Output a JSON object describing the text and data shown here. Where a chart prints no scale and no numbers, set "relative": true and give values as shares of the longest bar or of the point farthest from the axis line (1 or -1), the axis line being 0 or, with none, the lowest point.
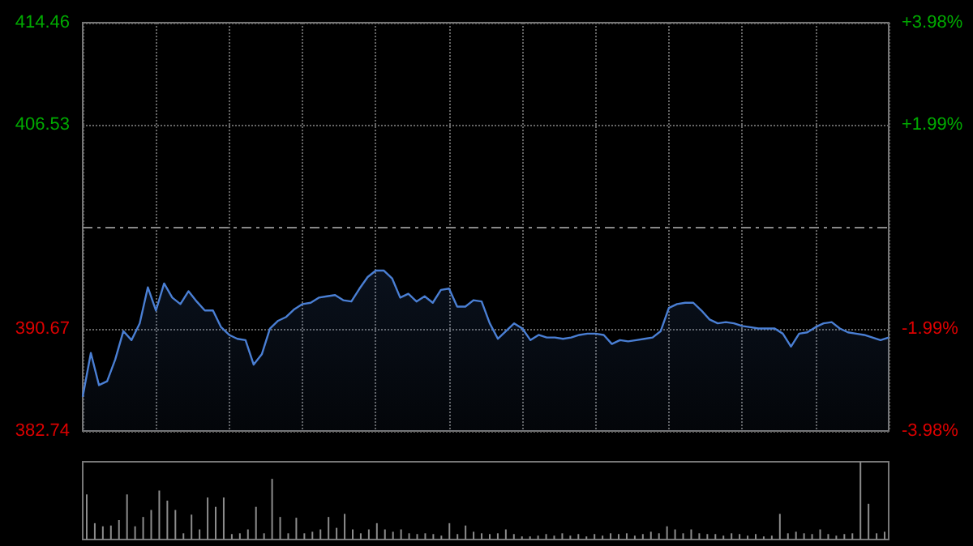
{
  "chart_data": [
    {
      "type": "area",
      "categories": [
        null,
        null,
        null,
        null,
        null,
        null,
        null,
        null,
        null,
        null,
        null,
        null,
        null,
        null,
        null,
        null,
        null,
        null,
        null,
        null,
        null,
        null,
        null,
        null,
        null,
        null,
        null,
        null,
        null,
        null,
        null,
        null,
        null,
        null,
        null,
        null,
        null,
        null,
        null,
        null,
        null,
        null,
        null,
        null,
        null,
        null,
        null,
        null,
        null,
        null,
        null,
        null,
        null,
        null,
        null,
        null,
        null,
        null,
        null,
        null,
        null,
        null,
        null,
        null,
        null,
        null,
        null,
        null,
        null,
        null,
        null,
        null,
        null,
        null,
        null,
        null,
        null,
        null,
        null,
        null,
        null,
        null,
        null,
        null,
        null,
        null,
        null,
        null,
        null,
        null,
        null,
        null,
        null,
        null,
        null,
        null,
        null,
        null,
        null,
        null
      ],
      "series": [
        {
          "color": "#4a7fd4",
          "values": [
            385.4,
            388.8,
            386.3,
            386.6,
            388.3,
            390.5,
            389.8,
            391.1,
            393.9,
            392.1,
            394.2,
            393.1,
            392.6,
            393.6,
            392.8,
            392.1,
            392.1,
            390.8,
            390.2,
            389.9,
            389.8,
            387.9,
            388.7,
            390.7,
            391.3,
            391.6,
            392.2,
            392.6,
            392.7,
            393.1,
            393.2,
            393.3,
            392.9,
            392.8,
            393.8,
            394.7,
            395.2,
            395.2,
            394.6,
            393.1,
            393.4,
            392.8,
            393.2,
            392.7,
            393.7,
            393.8,
            392.4,
            392.4,
            392.9,
            392.8,
            391.1,
            389.9,
            390.5,
            391.1,
            390.7,
            389.8,
            390.2,
            390.0,
            390.0,
            389.9,
            390.0,
            390.2,
            390.3,
            390.3,
            390.2,
            389.5,
            389.8,
            389.7,
            389.8,
            389.9,
            390.0,
            390.5,
            392.3,
            392.6,
            392.7,
            392.7,
            392.1,
            391.4,
            391.1,
            391.2,
            391.1,
            390.9,
            390.8,
            390.7,
            390.7,
            390.7,
            390.3,
            389.3,
            390.3,
            390.4,
            390.8,
            391.1,
            391.2,
            390.7,
            390.4,
            390.3,
            390.2,
            390.0,
            389.8,
            390.0
          ]
        }
      ],
      "ylim": [
        382.74,
        414.46
      ],
      "yticks": [
        382.74,
        390.67,
        406.53,
        414.46
      ],
      "y2lim": [
        -3.98,
        3.98
      ],
      "y2ticks": [
        {
          "value": -3.98,
          "label": "-3.98%"
        },
        {
          "value": -1.99,
          "label": "-1.99%"
        },
        {
          "value": 1.99,
          "label": "+1.99%"
        },
        {
          "value": 3.98,
          "label": "+3.98%"
        }
      ],
      "ref_lines": [
        {
          "axis": "y",
          "value": 398.6,
          "line_style": "dashed"
        }
      ],
      "grid": true,
      "tick_labels": "y"
    },
    {
      "type": "bar",
      "relative": true,
      "color": "#8c8c8c",
      "tick_labels": false,
      "categories": [
        null,
        null,
        null,
        null,
        null,
        null,
        null,
        null,
        null,
        null,
        null,
        null,
        null,
        null,
        null,
        null,
        null,
        null,
        null,
        null,
        null,
        null,
        null,
        null,
        null,
        null,
        null,
        null,
        null,
        null,
        null,
        null,
        null,
        null,
        null,
        null,
        null,
        null,
        null,
        null,
        null,
        null,
        null,
        null,
        null,
        null,
        null,
        null,
        null,
        null,
        null,
        null,
        null,
        null,
        null,
        null,
        null,
        null,
        null,
        null,
        null,
        null,
        null,
        null,
        null,
        null,
        null,
        null,
        null,
        null,
        null,
        null,
        null,
        null,
        null,
        null,
        null,
        null,
        null,
        null,
        null,
        null,
        null,
        null,
        null,
        null,
        null,
        null,
        null,
        null,
        null,
        null,
        null,
        null,
        null,
        null,
        null,
        null,
        null,
        null
      ],
      "values": [
        0.58,
        0.21,
        0.17,
        0.18,
        0.25,
        0.58,
        0.17,
        0.29,
        0.38,
        0.63,
        0.5,
        0.38,
        0.08,
        0.32,
        0.13,
        0.54,
        0.42,
        0.54,
        0.07,
        0.08,
        0.13,
        0.42,
        0.08,
        0.78,
        0.29,
        0.08,
        0.28,
        0.08,
        0.1,
        0.13,
        0.29,
        0.15,
        0.33,
        0.13,
        0.08,
        0.13,
        0.21,
        0.13,
        0.1,
        0.13,
        0.08,
        0.07,
        0.08,
        0.07,
        0.05,
        0.21,
        0.07,
        0.18,
        0.1,
        0.08,
        0.07,
        0.08,
        0.13,
        0.07,
        0.04,
        0.04,
        0.05,
        0.07,
        0.05,
        0.08,
        0.05,
        0.07,
        0.04,
        0.07,
        0.05,
        0.08,
        0.07,
        0.08,
        0.05,
        0.07,
        0.1,
        0.08,
        0.17,
        0.13,
        0.08,
        0.13,
        0.08,
        0.07,
        0.07,
        0.05,
        0.08,
        0.07,
        0.05,
        0.07,
        0.04,
        0.05,
        0.33,
        0.08,
        0.1,
        0.08,
        0.07,
        0.13,
        0.07,
        0.05,
        0.07,
        0.08,
        1,
        0.46,
        0.08,
        0.1
      ]
    }
  ]
}
